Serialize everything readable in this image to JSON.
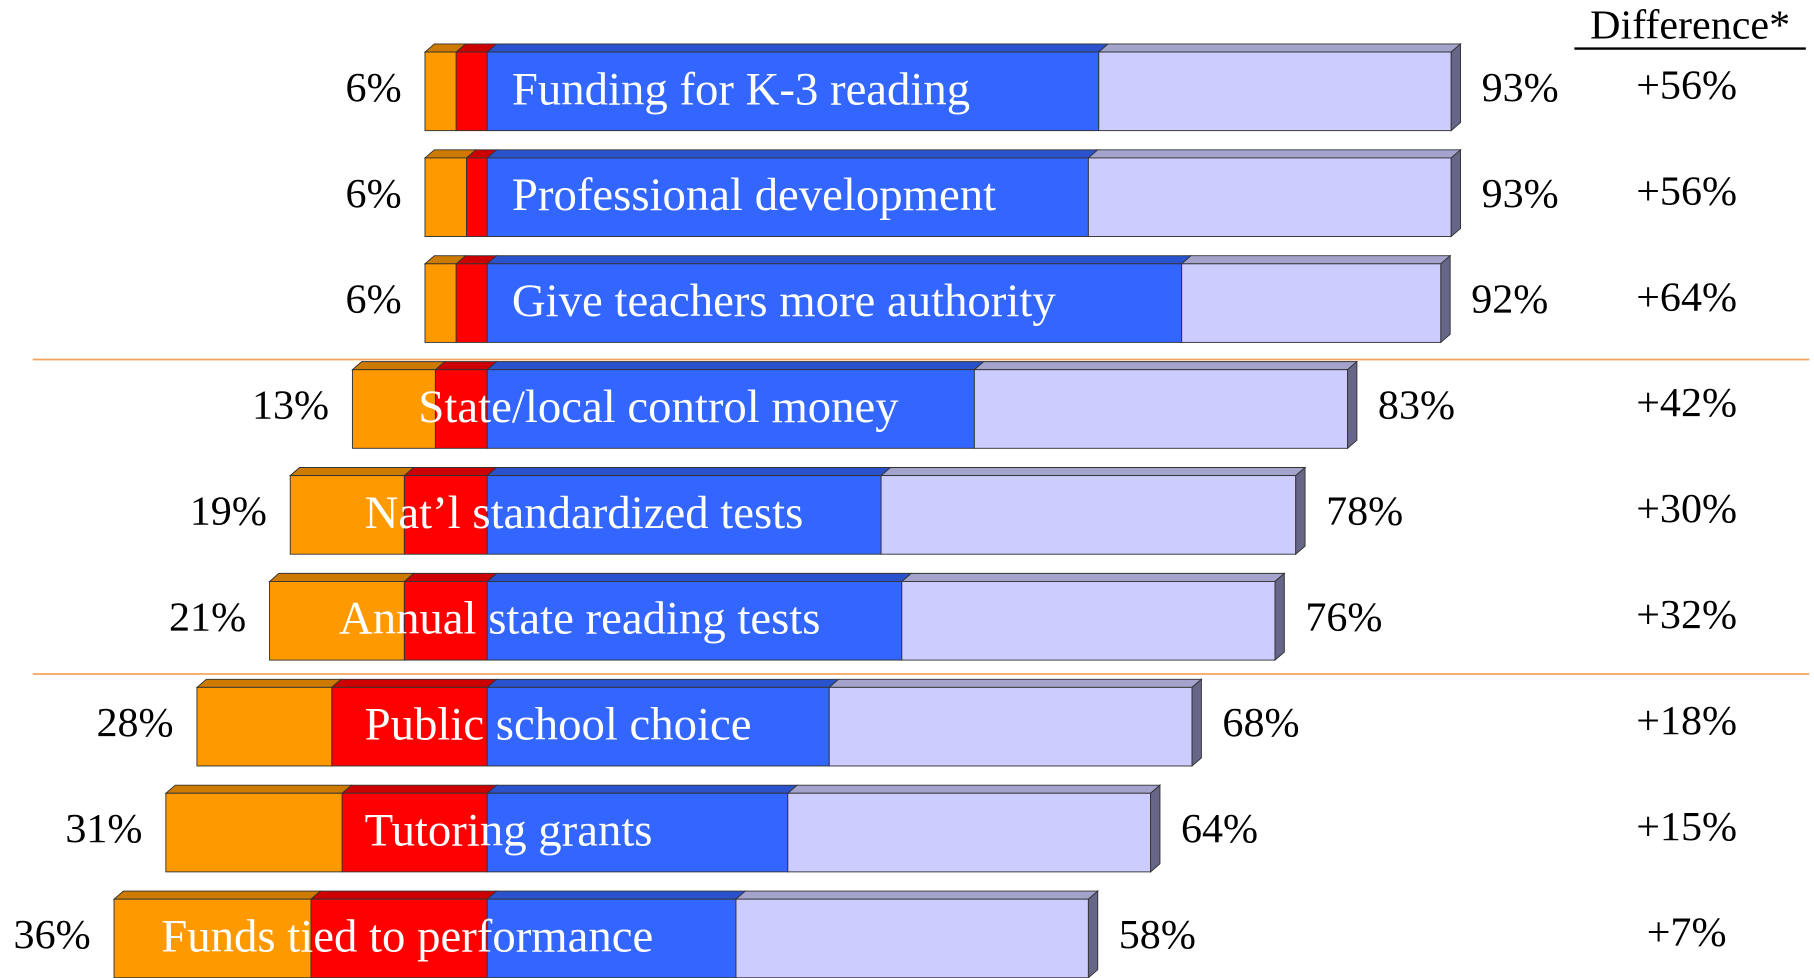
{
  "chart_data": {
    "type": "diverging-bar",
    "difference_header": "Difference*",
    "categories": [
      "Funding for K-3 reading",
      "Professional development",
      "Give teachers more authority",
      "State/local control money",
      "Nat’l standardized tests",
      "Annual state reading tests",
      "Public school choice",
      "Tutoring grants",
      "Funds tied to performance"
    ],
    "series": [
      {
        "color": "#FF9900",
        "side": "left",
        "values": [
          3,
          4,
          3,
          8,
          11,
          13,
          13,
          17,
          19
        ]
      },
      {
        "color": "#FF0000",
        "side": "left",
        "values": [
          3,
          2,
          3,
          5,
          8,
          8,
          15,
          14,
          17
        ]
      },
      {
        "color": "#3366FF",
        "side": "right",
        "values": [
          59,
          58,
          67,
          47,
          38,
          40,
          33,
          29,
          24
        ]
      },
      {
        "color": "#CCCCFF",
        "side": "right",
        "values": [
          34,
          35,
          25,
          36,
          40,
          36,
          35,
          35,
          34
        ]
      }
    ],
    "left_totals": {
      "values": [
        6,
        6,
        6,
        13,
        19,
        21,
        28,
        31,
        36
      ],
      "value_labels": [
        "6%",
        "6%",
        "6%",
        "13%",
        "19%",
        "21%",
        "28%",
        "31%",
        "36%"
      ]
    },
    "right_totals": {
      "values": [
        93,
        93,
        92,
        83,
        78,
        76,
        68,
        64,
        58
      ],
      "value_labels": [
        "93%",
        "93%",
        "92%",
        "83%",
        "78%",
        "76%",
        "68%",
        "64%",
        "58%"
      ]
    },
    "difference": {
      "values": [
        56,
        56,
        64,
        42,
        30,
        32,
        18,
        15,
        7
      ],
      "value_labels": [
        "+56%",
        "+56%",
        "+64%",
        "+42%",
        "+30%",
        "+32%",
        "+18%",
        "+15%",
        "+7%"
      ]
    },
    "xlim": [
      -47,
      128
    ],
    "separator_color": "#F4A460"
  }
}
